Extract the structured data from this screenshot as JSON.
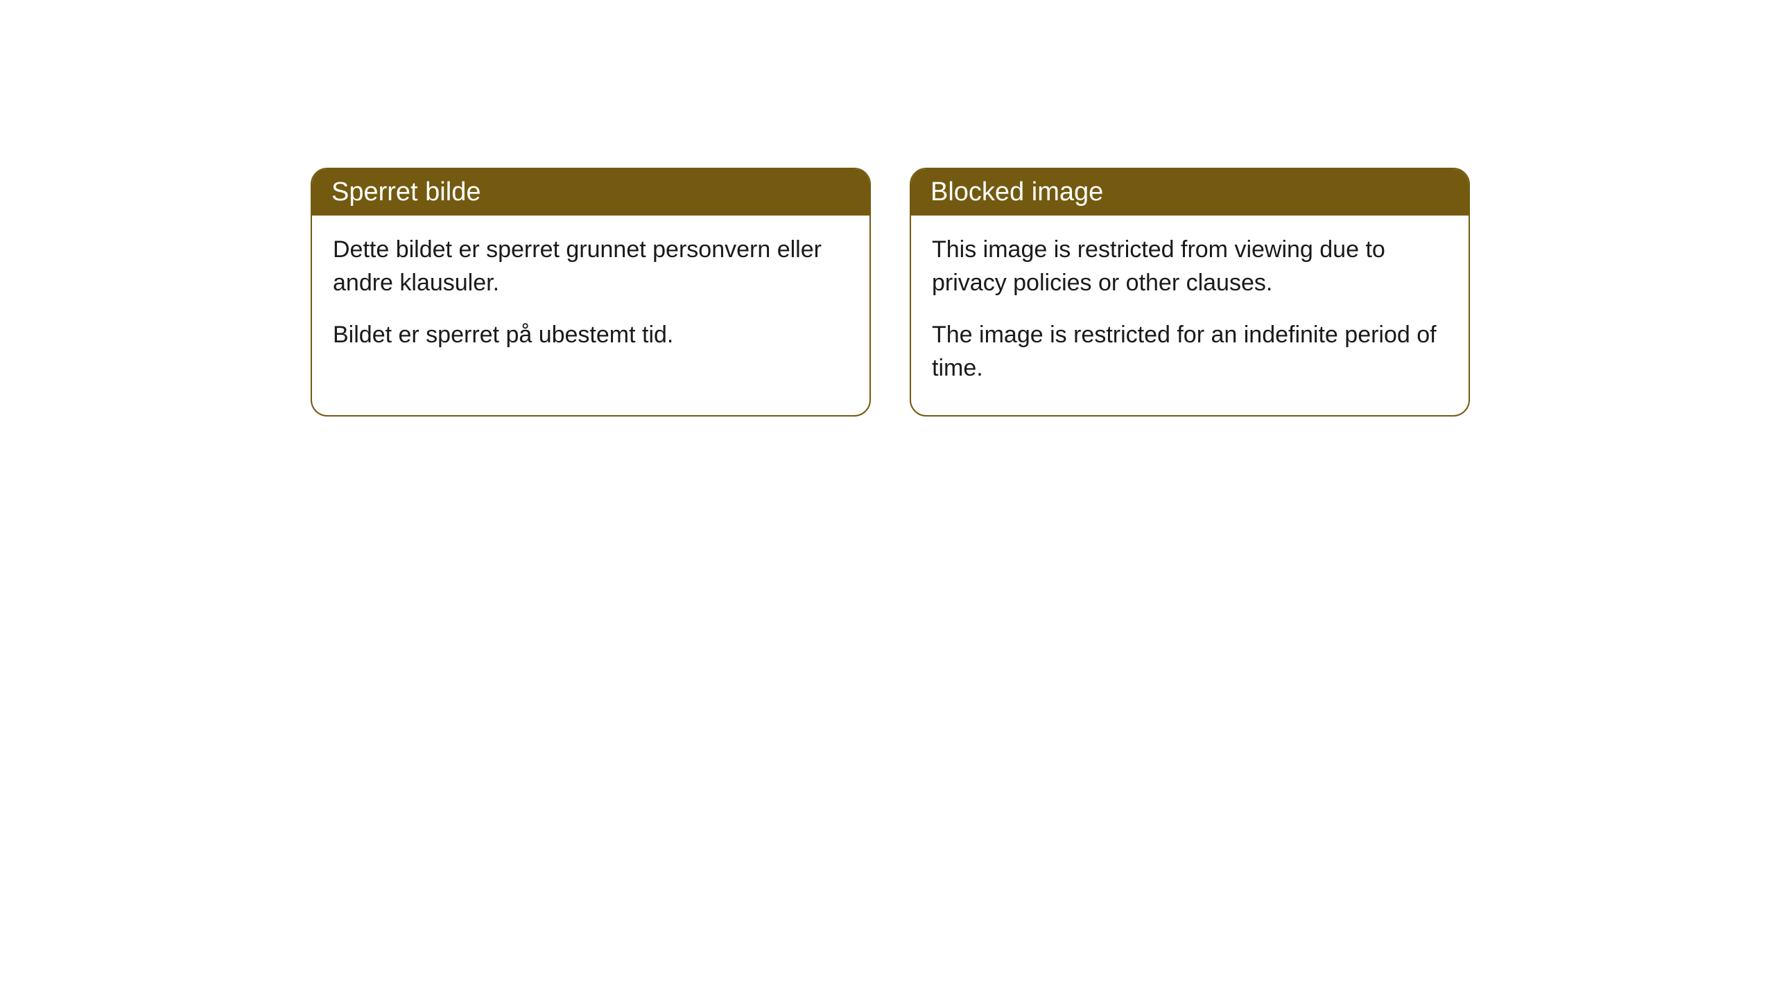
{
  "cards": [
    {
      "title": "Sperret bilde",
      "paragraph1": "Dette bildet er sperret grunnet personvern eller andre klausuler.",
      "paragraph2": "Bildet er sperret på ubestemt tid."
    },
    {
      "title": "Blocked image",
      "paragraph1": "This image is restricted from viewing due to privacy policies or other clauses.",
      "paragraph2": "The image is restricted for an indefinite period of time."
    }
  ],
  "style": {
    "header_bg_color": "#735a10",
    "header_text_color": "#ffffff",
    "border_color": "#735a10",
    "body_bg_color": "#ffffff",
    "body_text_color": "#1a1a1a",
    "border_radius": 24,
    "header_fontsize": 38,
    "body_fontsize": 34
  }
}
